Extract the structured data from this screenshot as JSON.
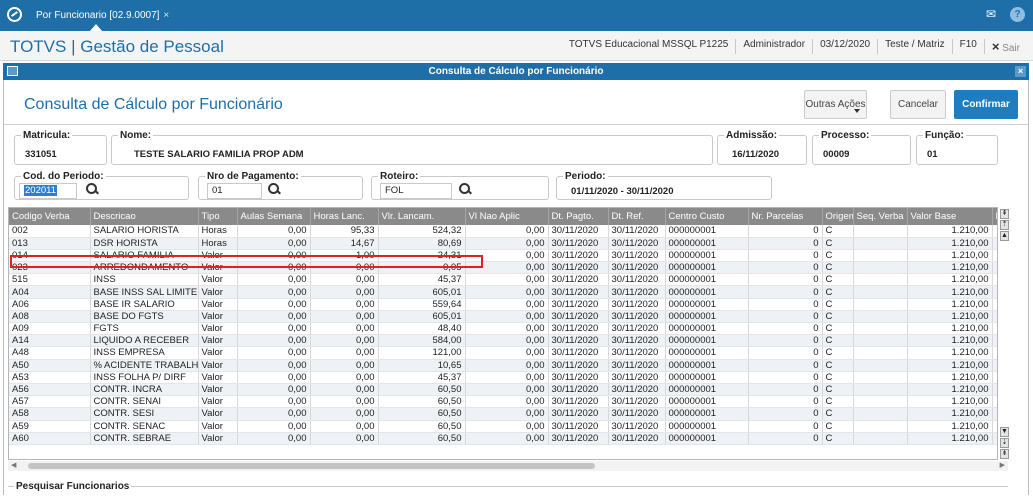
{
  "tab": {
    "title": "Por Funcionario [02.9.0007]",
    "close": "×"
  },
  "header": {
    "app_title": "TOTVS | Gestão de Pessoal",
    "environment": "TOTVS Educacional MSSQL P1225",
    "user": "Administrador",
    "date": "03/12/2020",
    "branch": "Teste / Matriz",
    "shortcut": "F10",
    "exit_label": "Sair",
    "exit_icon": "×"
  },
  "dialog": {
    "title": "Consulta de Cálculo por Funcionário",
    "close": "×"
  },
  "page": {
    "title": "Consulta de Cálculo por Funcionário",
    "btn_outras": "Outras Ações",
    "btn_cancel": "Cancelar",
    "btn_confirm": "Confirmar"
  },
  "fields": {
    "matricula_label": "Matricula:",
    "matricula": "331051",
    "nome_label": "Nome:",
    "nome": "TESTE SALARIO FAMILIA PROP ADM",
    "admissao_label": "Admissão:",
    "admissao": "16/11/2020",
    "processo_label": "Processo:",
    "processo": "00009",
    "funcao_label": "Função:",
    "funcao": "01",
    "cod_periodo_label": "Cod. do Periodo:",
    "cod_periodo": "202011",
    "nro_pagamento_label": "Nro de Pagamento:",
    "nro_pagamento": "01",
    "roteiro_label": "Roteiro:",
    "roteiro": "FOL",
    "periodo_label": "Periodo:",
    "periodo": "01/11/2020 - 30/11/2020"
  },
  "table": {
    "columns": [
      "Codigo Verba",
      "Descricao",
      "Tipo",
      "Aulas Semana",
      "Horas Lanc.",
      "Vlr. Lancam.",
      "Vl Nao Aplic",
      "Dt. Pagto.",
      "Dt. Ref.",
      "Centro Custo",
      "Nr. Parcelas",
      "Origem",
      "Seq. Verba",
      "Valor Base",
      "F"
    ],
    "rows": [
      [
        "002",
        "SALARIO HORISTA",
        "Horas",
        "0,00",
        "95,33",
        "524,32",
        "0,00",
        "30/11/2020",
        "30/11/2020",
        "000000001",
        "0",
        "C",
        "",
        "1.210,00",
        ""
      ],
      [
        "013",
        "DSR HORISTA",
        "Horas",
        "0,00",
        "14,67",
        "80,69",
        "0,00",
        "30/11/2020",
        "30/11/2020",
        "000000001",
        "0",
        "C",
        "",
        "1.210,00",
        ""
      ],
      [
        "014",
        "SALARIO FAMILIA",
        "Valor",
        "0,00",
        "1,00",
        "24,31",
        "0,00",
        "30/11/2020",
        "30/11/2020",
        "000000001",
        "0",
        "C",
        "",
        "1.210,00",
        ""
      ],
      [
        "023",
        "ARREDONDAMENTO",
        "Valor",
        "0,00",
        "0,00",
        "0,05",
        "0,00",
        "30/11/2020",
        "30/11/2020",
        "000000001",
        "0",
        "C",
        "",
        "1.210,00",
        ""
      ],
      [
        "515",
        "INSS",
        "Valor",
        "0,00",
        "0,00",
        "45,37",
        "0,00",
        "30/11/2020",
        "30/11/2020",
        "000000001",
        "0",
        "C",
        "",
        "1.210,00",
        ""
      ],
      [
        "A04",
        "BASE INSS SAL LIMITE",
        "Valor",
        "0,00",
        "0,00",
        "605,01",
        "0,00",
        "30/11/2020",
        "30/11/2020",
        "000000001",
        "0",
        "C",
        "",
        "1.210,00",
        ""
      ],
      [
        "A06",
        "BASE IR SALARIO",
        "Valor",
        "0,00",
        "0,00",
        "559,64",
        "0,00",
        "30/11/2020",
        "30/11/2020",
        "000000001",
        "0",
        "C",
        "",
        "1.210,00",
        ""
      ],
      [
        "A08",
        "BASE DO FGTS",
        "Valor",
        "0,00",
        "0,00",
        "605,01",
        "0,00",
        "30/11/2020",
        "30/11/2020",
        "000000001",
        "0",
        "C",
        "",
        "1.210,00",
        ""
      ],
      [
        "A09",
        "FGTS",
        "Valor",
        "0,00",
        "0,00",
        "48,40",
        "0,00",
        "30/11/2020",
        "30/11/2020",
        "000000001",
        "0",
        "C",
        "",
        "1.210,00",
        ""
      ],
      [
        "A14",
        "LIQUIDO A RECEBER",
        "Valor",
        "0,00",
        "0,00",
        "584,00",
        "0,00",
        "30/11/2020",
        "30/11/2020",
        "000000001",
        "0",
        "C",
        "",
        "1.210,00",
        ""
      ],
      [
        "A48",
        "INSS EMPRESA",
        "Valor",
        "0,00",
        "0,00",
        "121,00",
        "0,00",
        "30/11/2020",
        "30/11/2020",
        "000000001",
        "0",
        "C",
        "",
        "1.210,00",
        ""
      ],
      [
        "A50",
        "% ACIDENTE TRABALHO",
        "Valor",
        "0,00",
        "0,00",
        "10,65",
        "0,00",
        "30/11/2020",
        "30/11/2020",
        "000000001",
        "0",
        "C",
        "",
        "1.210,00",
        ""
      ],
      [
        "A53",
        "INSS FOLHA P/ DIRF",
        "Valor",
        "0,00",
        "0,00",
        "45,37",
        "0,00",
        "30/11/2020",
        "30/11/2020",
        "000000001",
        "0",
        "C",
        "",
        "1.210,00",
        ""
      ],
      [
        "A56",
        "CONTR. INCRA",
        "Valor",
        "0,00",
        "0,00",
        "60,50",
        "0,00",
        "30/11/2020",
        "30/11/2020",
        "000000001",
        "0",
        "C",
        "",
        "1.210,00",
        ""
      ],
      [
        "A57",
        "CONTR. SENAI",
        "Valor",
        "0,00",
        "0,00",
        "60,50",
        "0,00",
        "30/11/2020",
        "30/11/2020",
        "000000001",
        "0",
        "C",
        "",
        "1.210,00",
        ""
      ],
      [
        "A58",
        "CONTR. SESI",
        "Valor",
        "0,00",
        "0,00",
        "60,50",
        "0,00",
        "30/11/2020",
        "30/11/2020",
        "000000001",
        "0",
        "C",
        "",
        "1.210,00",
        ""
      ],
      [
        "A59",
        "CONTR. SENAC",
        "Valor",
        "0,00",
        "0,00",
        "60,50",
        "0,00",
        "30/11/2020",
        "30/11/2020",
        "000000001",
        "0",
        "C",
        "",
        "1.210,00",
        ""
      ],
      [
        "A60",
        "CONTR. SEBRAE",
        "Valor",
        "0,00",
        "0,00",
        "60,50",
        "0,00",
        "30/11/2020",
        "30/11/2020",
        "000000001",
        "0",
        "C",
        "",
        "1.210,00",
        ""
      ]
    ],
    "highlighted_row": 2
  },
  "bottom": {
    "label": "Pesquisar Funcionarios"
  },
  "colors": {
    "brand": "#1e6fa8",
    "highlight": "#dd2222",
    "header_gray": "#8a8a8a"
  }
}
